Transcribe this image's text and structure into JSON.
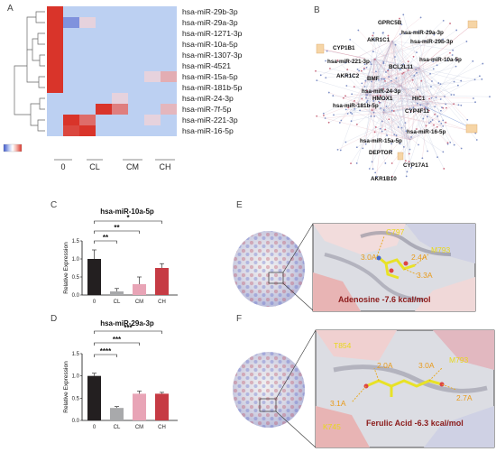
{
  "panels": {
    "A": "A",
    "B": "B",
    "C": "C",
    "D": "D",
    "E": "E",
    "F": "F"
  },
  "heatmap": {
    "rows": [
      "hsa-miR-29b-3p",
      "hsa-miR-29a-3p",
      "hsa-miR-1271-3p",
      "hsa-miR-10a-5p",
      "hsa-miR-1307-3p",
      "hsa-miR-4521",
      "hsa-miR-15a-5p",
      "hsa-miR-181b-5p",
      "hsa-miR-24-3p",
      "hsa-miR-7f-5p",
      "hsa-miR-221-3p",
      "hsa-miR-16-5p"
    ],
    "groups": [
      "0",
      "CL",
      "CM",
      "CH"
    ],
    "values": [
      [
        1.0,
        0.05,
        0.05,
        0.05,
        0.05,
        0.05,
        0.05,
        0.05
      ],
      [
        1.0,
        -0.6,
        0.15,
        0.05,
        0.05,
        0.0,
        0.0,
        0.0
      ],
      [
        1.0,
        0.05,
        0.05,
        0.05,
        0.05,
        0.05,
        0.05,
        0.05
      ],
      [
        1.0,
        0.05,
        0.05,
        0.05,
        0.05,
        0.05,
        0.05,
        0.05
      ],
      [
        1.0,
        0.05,
        0.05,
        0.05,
        0.05,
        0.05,
        0.05,
        0.05
      ],
      [
        1.0,
        0.05,
        0.05,
        0.05,
        0.05,
        0.05,
        0.05,
        0.05
      ],
      [
        1.0,
        0.05,
        0.05,
        0.05,
        0.05,
        0.05,
        0.15,
        0.35
      ],
      [
        1.0,
        0.05,
        0.05,
        0.05,
        0.05,
        0.05,
        0.05,
        0.05
      ],
      [
        0.05,
        0.05,
        0.05,
        0.05,
        0.15,
        0.05,
        0.05,
        0.05
      ],
      [
        0.05,
        0.05,
        0.05,
        1.0,
        0.6,
        0.05,
        0.05,
        0.3
      ],
      [
        0.05,
        1.0,
        0.7,
        0.05,
        0.05,
        0.05,
        0.15,
        0.05
      ],
      [
        0.05,
        0.9,
        1.0,
        0.05,
        0.05,
        0.05,
        0.05,
        0.05
      ]
    ],
    "scale_colors": [
      "#3b55c8",
      "#bcc9f2",
      "#ffffff",
      "#f4b8b0",
      "#d9342a"
    ]
  },
  "network": {
    "big_labels": [
      "GPRC5B",
      "hsa-miR-29a-3p",
      "AKR1C1",
      "hsa-miR-29b-3p",
      "CYP1B1",
      "hsa-miR-221-3p",
      "hsa-miR-10a-5p",
      "BCL2L11",
      "AKR1C2",
      "BMF",
      "hsa-miR-24-3p",
      "HMOX1",
      "HIC1",
      "hsa-miR-181b-5p",
      "CYP4F11",
      "hsa-miR-16-5p",
      "hsa-miR-15a-5p",
      "DEPTOR",
      "CYP17A1",
      "AKR1B10"
    ]
  },
  "chart_data": [
    {
      "type": "bar",
      "title": "hsa-miR-10a-5p",
      "ylabel": "Relative Expression",
      "categories": [
        "0",
        "CL",
        "CM",
        "CH"
      ],
      "values": [
        1.0,
        0.1,
        0.3,
        0.75
      ],
      "errors": [
        0.25,
        0.08,
        0.2,
        0.12
      ],
      "colors": [
        "#231f20",
        "#a8a9ab",
        "#e8a4b6",
        "#c63b44"
      ],
      "ylim": [
        0,
        1.5
      ],
      "yticks": [
        "0.0",
        "0.5",
        "1.0",
        "1.5"
      ],
      "significance": [
        {
          "pair": [
            "0",
            "CH"
          ],
          "label": "*"
        },
        {
          "pair": [
            "0",
            "CM"
          ],
          "label": "**"
        },
        {
          "pair": [
            "0",
            "CL"
          ],
          "label": "**"
        }
      ]
    },
    {
      "type": "bar",
      "title": "hsa-miR-29a-3p",
      "ylabel": "Relative Expression",
      "categories": [
        "0",
        "CL",
        "CM",
        "CH"
      ],
      "values": [
        1.0,
        0.28,
        0.6,
        0.6
      ],
      "errors": [
        0.06,
        0.03,
        0.06,
        0.03
      ],
      "colors": [
        "#231f20",
        "#a8a9ab",
        "#e8a4b6",
        "#c63b44"
      ],
      "ylim": [
        0,
        1.5
      ],
      "yticks": [
        "0.0",
        "0.5",
        "1.0",
        "1.5"
      ],
      "significance": [
        {
          "pair": [
            "0",
            "CH"
          ],
          "label": "***"
        },
        {
          "pair": [
            "0",
            "CM"
          ],
          "label": "***"
        },
        {
          "pair": [
            "0",
            "CL"
          ],
          "label": "****"
        }
      ]
    }
  ],
  "docking": {
    "E": {
      "caption": "Adenosine -7.6 kcal/mol",
      "residues": [
        "C797",
        "M793"
      ],
      "distances": [
        "3.0A",
        "2.4A",
        "3.3A"
      ]
    },
    "F": {
      "caption": "Ferulic Acid -6.3 kcal/mol",
      "residues": [
        "T854",
        "M793",
        "K745"
      ],
      "distances": [
        "2.0A",
        "3.0A",
        "3.1A",
        "2.7A"
      ]
    }
  }
}
